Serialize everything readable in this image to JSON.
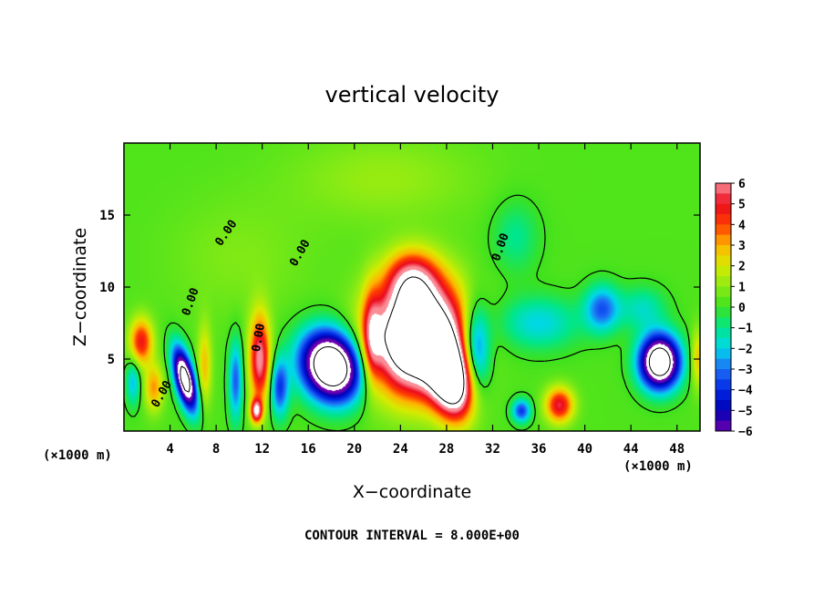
{
  "chart_data": {
    "type": "heatmap",
    "title": "vertical velocity",
    "xlabel": "X−coordinate",
    "ylabel": "Z−coordinate",
    "x_unit_label": "(×1000 m)",
    "xlim": [
      0,
      50
    ],
    "ylim": [
      0,
      20
    ],
    "x_ticks": [
      4,
      8,
      12,
      16,
      20,
      24,
      28,
      32,
      36,
      40,
      44,
      48
    ],
    "y_ticks": [
      5,
      10,
      15
    ],
    "colorbar": {
      "labels": [
        "6",
        "5",
        "4",
        "3",
        "2",
        "1",
        "0",
        "−1",
        "−2",
        "−3",
        "−4",
        "−5",
        "−6"
      ],
      "min": -6,
      "max": 6
    },
    "contour_label": "0.00",
    "note": "CONTOUR INTERVAL = 8.000E+00",
    "features": [
      {
        "x": 25.5,
        "z": 6.5,
        "sx": 3.8,
        "sz": 3.6,
        "amp": 13,
        "rot": -0.35
      },
      {
        "x": 25.0,
        "z": 10.5,
        "sx": 2.2,
        "sz": 2.0,
        "amp": 4.5,
        "rot": 0
      },
      {
        "x": 28.5,
        "z": 3.5,
        "sx": 1.8,
        "sz": 2.6,
        "amp": 10,
        "rot": -0.3
      },
      {
        "x": 30.5,
        "z": 5.5,
        "sx": 1.2,
        "sz": 3.2,
        "amp": -5,
        "rot": 0
      },
      {
        "x": 18.0,
        "z": 4.5,
        "sx": 2.6,
        "sz": 2.2,
        "amp": -12,
        "rot": 0.5
      },
      {
        "x": 21.5,
        "z": 6.5,
        "sx": 0.8,
        "sz": 3.2,
        "amp": 3.5,
        "rot": 0
      },
      {
        "x": 11.8,
        "z": 5.0,
        "sx": 0.9,
        "sz": 3.0,
        "amp": 6,
        "rot": 0
      },
      {
        "x": 11.5,
        "z": 1.4,
        "sx": 0.5,
        "sz": 0.8,
        "amp": 6,
        "rot": 0
      },
      {
        "x": 9.7,
        "z": 3.5,
        "sx": 0.6,
        "sz": 2.8,
        "amp": -3.5,
        "rot": 0
      },
      {
        "x": 13.5,
        "z": 3.0,
        "sx": 0.8,
        "sz": 2.0,
        "amp": -4,
        "rot": 0
      },
      {
        "x": 5.3,
        "z": 3.6,
        "sx": 0.8,
        "sz": 2.2,
        "amp": -10,
        "rot": -0.3
      },
      {
        "x": 7.0,
        "z": 4.5,
        "sx": 0.6,
        "sz": 2.8,
        "amp": 2.5,
        "rot": 0
      },
      {
        "x": 1.5,
        "z": 6.2,
        "sx": 1.0,
        "sz": 1.6,
        "amp": 4.5,
        "rot": 0
      },
      {
        "x": 2.6,
        "z": 3.0,
        "sx": 0.8,
        "sz": 1.6,
        "amp": 3,
        "rot": 0
      },
      {
        "x": 0.8,
        "z": 3.4,
        "sx": 0.6,
        "sz": 1.6,
        "amp": -2.5,
        "rot": 0
      },
      {
        "x": 37.8,
        "z": 1.8,
        "sx": 1.2,
        "sz": 1.2,
        "amp": 5,
        "rot": 0
      },
      {
        "x": 34.5,
        "z": 1.4,
        "sx": 0.8,
        "sz": 0.8,
        "amp": -4,
        "rot": 0
      },
      {
        "x": 36.0,
        "z": 7.5,
        "sx": 3.5,
        "sz": 1.8,
        "amp": -2.2,
        "rot": 0
      },
      {
        "x": 41.5,
        "z": 8.5,
        "sx": 1.5,
        "sz": 1.6,
        "amp": -3.5,
        "rot": 0
      },
      {
        "x": 46.5,
        "z": 4.8,
        "sx": 1.7,
        "sz": 1.8,
        "amp": -11,
        "rot": 0
      },
      {
        "x": 45.0,
        "z": 8.5,
        "sx": 2.0,
        "sz": 1.5,
        "amp": -1.8,
        "rot": 0
      },
      {
        "x": 49.8,
        "z": 5.0,
        "sx": 0.6,
        "sz": 2.0,
        "amp": 2.5,
        "rot": 0
      },
      {
        "x": 34.0,
        "z": 13.5,
        "sx": 2.0,
        "sz": 2.5,
        "amp": -1.3,
        "rot": 0
      },
      {
        "x": 22.5,
        "z": 17.5,
        "sx": 8.0,
        "sz": 3.0,
        "amp": 0.9,
        "rot": 0
      },
      {
        "x": 10.0,
        "z": 12.0,
        "sx": 6.0,
        "sz": 4.0,
        "amp": 0.6,
        "rot": 0
      }
    ]
  }
}
